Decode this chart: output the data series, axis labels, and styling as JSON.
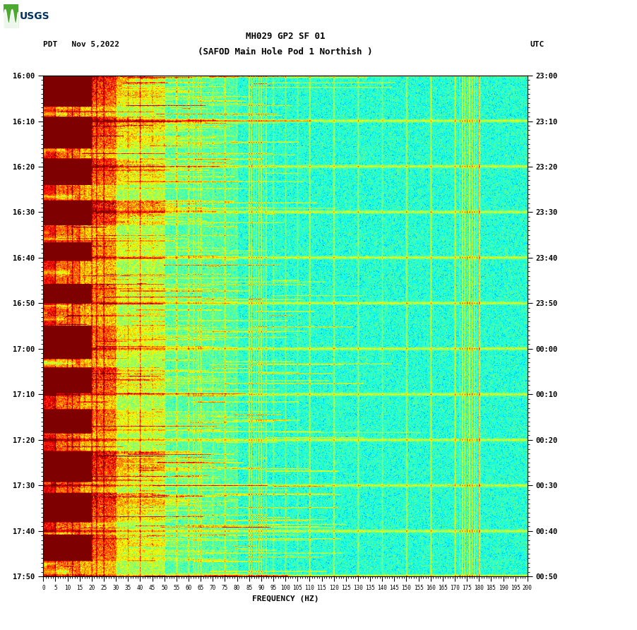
{
  "title_line1": "MH029 GP2 SF 01",
  "title_line2": "(SAFOD Main Hole Pod 1 Northish )",
  "left_label": "PDT   Nov 5,2022",
  "right_label": "UTC",
  "xlabel": "FREQUENCY (HZ)",
  "freq_min": 0,
  "freq_max": 200,
  "freq_ticks": [
    0,
    5,
    10,
    15,
    20,
    25,
    30,
    35,
    40,
    45,
    50,
    55,
    60,
    65,
    70,
    75,
    80,
    85,
    90,
    95,
    100,
    105,
    110,
    115,
    120,
    125,
    130,
    135,
    140,
    145,
    150,
    155,
    160,
    165,
    170,
    175,
    180,
    185,
    190,
    195,
    200
  ],
  "left_time_ticks": [
    "16:00",
    "16:10",
    "16:20",
    "16:30",
    "16:40",
    "16:50",
    "17:00",
    "17:10",
    "17:20",
    "17:30",
    "17:40",
    "17:50"
  ],
  "right_time_ticks": [
    "23:00",
    "23:10",
    "23:20",
    "23:30",
    "23:40",
    "23:50",
    "00:00",
    "00:10",
    "00:20",
    "00:30",
    "00:40",
    "00:50"
  ],
  "colormap": "jet",
  "background_color": "#ffffff",
  "vmin": -160,
  "vmax": -60,
  "n_time": 660,
  "n_freq": 800,
  "random_seed": 42
}
